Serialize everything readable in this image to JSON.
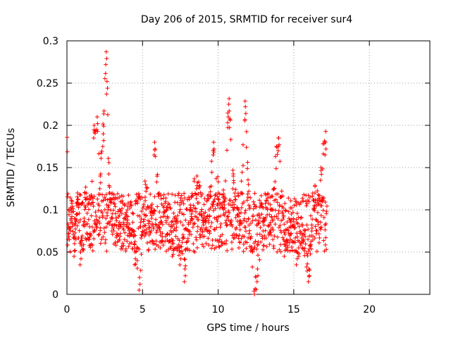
{
  "chart_data": {
    "type": "scatter",
    "title": "Day 206 of 2015, SRMTID for receiver sur4",
    "xlabel": "GPS time / hours",
    "ylabel": "SRMTID / TECUs",
    "xlim": [
      0,
      24
    ],
    "ylim": [
      0,
      0.3
    ],
    "xticks": [
      0,
      5,
      10,
      15,
      20
    ],
    "yticks": [
      0,
      0.05,
      0.1,
      0.15,
      0.2,
      0.25,
      0.3
    ],
    "xtick_labels": [
      "0",
      "5",
      "10",
      "15",
      "20"
    ],
    "ytick_labels": [
      "0",
      "0.05",
      "0.1",
      "0.15",
      "0.2",
      "0.25",
      "0.3"
    ],
    "grid": true,
    "marker": "+",
    "series": [
      {
        "name": "SRMTID",
        "color": "#ff0000",
        "x_range_hours": [
          0,
          17.2
        ],
        "sample_points": [
          [
            0.1,
            0.08
          ],
          [
            0.3,
            0.1
          ],
          [
            0.5,
            0.06
          ],
          [
            0.7,
            0.12
          ],
          [
            0.9,
            0.05
          ],
          [
            1.2,
            0.12
          ],
          [
            1.5,
            0.08
          ],
          [
            1.8,
            0.2
          ],
          [
            2.0,
            0.21
          ],
          [
            2.2,
            0.14
          ],
          [
            2.4,
            0.19
          ],
          [
            2.6,
            0.287
          ],
          [
            2.65,
            0.252
          ],
          [
            2.8,
            0.12
          ],
          [
            3.0,
            0.09
          ],
          [
            3.5,
            0.08
          ],
          [
            4.0,
            0.1
          ],
          [
            4.5,
            0.05
          ],
          [
            4.8,
            0.02
          ],
          [
            5.2,
            0.13
          ],
          [
            5.6,
            0.09
          ],
          [
            5.8,
            0.18
          ],
          [
            6.2,
            0.07
          ],
          [
            6.6,
            0.1
          ],
          [
            7.0,
            0.06
          ],
          [
            7.5,
            0.05
          ],
          [
            7.8,
            0.03
          ],
          [
            8.2,
            0.1
          ],
          [
            8.6,
            0.14
          ],
          [
            9.0,
            0.09
          ],
          [
            9.4,
            0.1
          ],
          [
            9.7,
            0.18
          ],
          [
            10.0,
            0.12
          ],
          [
            10.4,
            0.11
          ],
          [
            10.7,
            0.225
          ],
          [
            11.0,
            0.14
          ],
          [
            11.4,
            0.07
          ],
          [
            11.8,
            0.222
          ],
          [
            12.0,
            0.13
          ],
          [
            12.4,
            0.0
          ],
          [
            12.6,
            0.03
          ],
          [
            13.0,
            0.09
          ],
          [
            13.5,
            0.1
          ],
          [
            14.0,
            0.185
          ],
          [
            14.4,
            0.06
          ],
          [
            14.8,
            0.08
          ],
          [
            15.2,
            0.05
          ],
          [
            15.6,
            0.07
          ],
          [
            16.0,
            0.03
          ],
          [
            16.4,
            0.12
          ],
          [
            16.8,
            0.15
          ],
          [
            17.1,
            0.18
          ]
        ]
      }
    ]
  }
}
